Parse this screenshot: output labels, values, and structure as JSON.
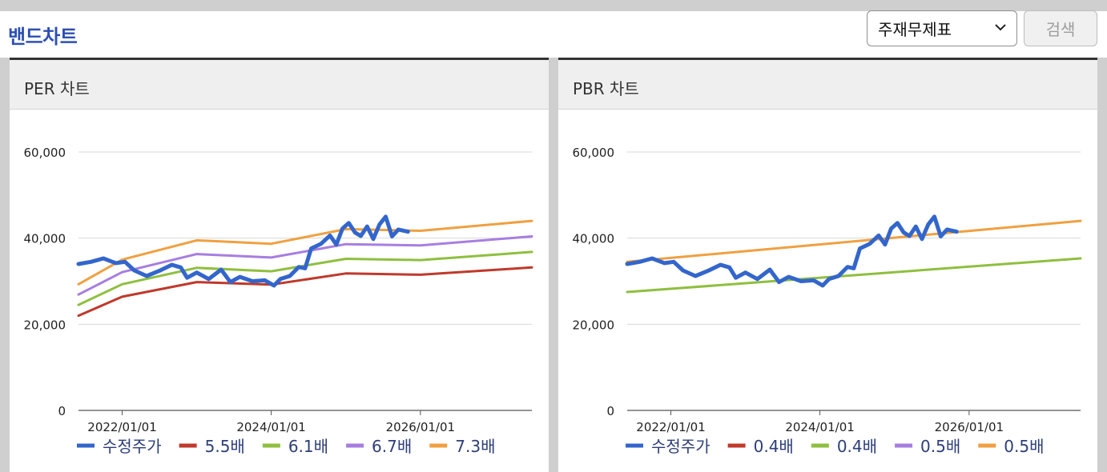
{
  "header": {
    "title": "밴드차트"
  },
  "controls": {
    "select_value": "주재무제표",
    "search_label": "검색",
    "icons": {
      "select_arrow": "chevron-down-icon"
    }
  },
  "colors": {
    "title": "#2d4fb3",
    "price": "#3366cc",
    "band1": "#c0392b",
    "band2": "#8fbf3f",
    "band3": "#a77ee0",
    "band4": "#f0a040"
  },
  "chart_data": [
    {
      "type": "line",
      "title": "PER 차트",
      "xlabel": "",
      "ylabel": "",
      "xlim": [
        "2021/06/01",
        "2027/07/01"
      ],
      "ylim": [
        0,
        60000
      ],
      "x_ticks": [
        "2022/01/01",
        "2024/01/01",
        "2026/01/01"
      ],
      "y_ticks": [
        "0",
        "20,000",
        "40,000",
        "60,000"
      ],
      "grid": true,
      "legend": "bottom",
      "series": [
        {
          "name": "수정주가",
          "color": "#3366cc",
          "width": 5,
          "points": [
            [
              "2021/06/01",
              34000
            ],
            [
              "2021/08/01",
              34500
            ],
            [
              "2021/10/01",
              35300
            ],
            [
              "2021/12/01",
              34200
            ],
            [
              "2022/01/15",
              34500
            ],
            [
              "2022/03/01",
              32500
            ],
            [
              "2022/05/01",
              31200
            ],
            [
              "2022/07/01",
              32400
            ],
            [
              "2022/09/01",
              33800
            ],
            [
              "2022/10/15",
              33200
            ],
            [
              "2022/11/15",
              30800
            ],
            [
              "2023/01/01",
              32000
            ],
            [
              "2023/03/01",
              30500
            ],
            [
              "2023/05/01",
              32700
            ],
            [
              "2023/06/15",
              29800
            ],
            [
              "2023/08/01",
              31000
            ],
            [
              "2023/10/01",
              30000
            ],
            [
              "2023/12/01",
              30200
            ],
            [
              "2024/01/15",
              29000
            ],
            [
              "2024/02/15",
              30500
            ],
            [
              "2024/04/01",
              31200
            ],
            [
              "2024/05/15",
              33300
            ],
            [
              "2024/06/15",
              33000
            ],
            [
              "2024/07/15",
              37600
            ],
            [
              "2024/09/01",
              38700
            ],
            [
              "2024/10/15",
              40600
            ],
            [
              "2024/11/15",
              38500
            ],
            [
              "2024/12/15",
              42200
            ],
            [
              "2025/01/15",
              43500
            ],
            [
              "2025/02/15",
              41300
            ],
            [
              "2025/03/15",
              40500
            ],
            [
              "2025/04/15",
              42700
            ],
            [
              "2025/05/15",
              39800
            ],
            [
              "2025/06/15",
              43200
            ],
            [
              "2025/07/15",
              45000
            ],
            [
              "2025/08/15",
              40400
            ],
            [
              "2025/09/15",
              42000
            ],
            [
              "2025/11/01",
              41500
            ]
          ]
        },
        {
          "name": "5.5배",
          "color": "#c0392b",
          "width": 3,
          "points": [
            [
              "2021/06/01",
              22000
            ],
            [
              "2022/01/01",
              26400
            ],
            [
              "2023/01/01",
              29800
            ],
            [
              "2024/01/01",
              29200
            ],
            [
              "2025/01/01",
              31800
            ],
            [
              "2026/01/01",
              31500
            ],
            [
              "2027/07/01",
              33200
            ]
          ]
        },
        {
          "name": "6.1배",
          "color": "#8fbf3f",
          "width": 3,
          "points": [
            [
              "2021/06/01",
              24500
            ],
            [
              "2022/01/01",
              29300
            ],
            [
              "2023/01/01",
              33100
            ],
            [
              "2024/01/01",
              32300
            ],
            [
              "2025/01/01",
              35200
            ],
            [
              "2026/01/01",
              34900
            ],
            [
              "2027/07/01",
              36800
            ]
          ]
        },
        {
          "name": "6.7배",
          "color": "#a77ee0",
          "width": 3,
          "points": [
            [
              "2021/06/01",
              26900
            ],
            [
              "2022/01/01",
              32100
            ],
            [
              "2023/01/01",
              36300
            ],
            [
              "2024/01/01",
              35500
            ],
            [
              "2025/01/01",
              38600
            ],
            [
              "2026/01/01",
              38300
            ],
            [
              "2027/07/01",
              40400
            ]
          ]
        },
        {
          "name": "7.3배",
          "color": "#f0a040",
          "width": 3,
          "points": [
            [
              "2021/06/01",
              29300
            ],
            [
              "2022/01/01",
              35000
            ],
            [
              "2023/01/01",
              39500
            ],
            [
              "2024/01/01",
              38700
            ],
            [
              "2025/01/01",
              42100
            ],
            [
              "2026/01/01",
              41700
            ],
            [
              "2027/07/01",
              44000
            ]
          ]
        }
      ]
    },
    {
      "type": "line",
      "title": "PBR 차트",
      "xlabel": "",
      "ylabel": "",
      "xlim": [
        "2021/06/01",
        "2027/07/01"
      ],
      "ylim": [
        0,
        60000
      ],
      "x_ticks": [
        "2022/01/01",
        "2024/01/01",
        "2026/01/01"
      ],
      "y_ticks": [
        "0",
        "20,000",
        "40,000",
        "60,000"
      ],
      "grid": true,
      "legend": "bottom",
      "series": [
        {
          "name": "수정주가",
          "color": "#3366cc",
          "width": 5,
          "points": [
            [
              "2021/06/01",
              34000
            ],
            [
              "2021/08/01",
              34500
            ],
            [
              "2021/10/01",
              35300
            ],
            [
              "2021/12/01",
              34200
            ],
            [
              "2022/01/15",
              34500
            ],
            [
              "2022/03/01",
              32500
            ],
            [
              "2022/05/01",
              31200
            ],
            [
              "2022/07/01",
              32400
            ],
            [
              "2022/09/01",
              33800
            ],
            [
              "2022/10/15",
              33200
            ],
            [
              "2022/11/15",
              30800
            ],
            [
              "2023/01/01",
              32000
            ],
            [
              "2023/03/01",
              30500
            ],
            [
              "2023/05/01",
              32700
            ],
            [
              "2023/06/15",
              29800
            ],
            [
              "2023/08/01",
              31000
            ],
            [
              "2023/10/01",
              30000
            ],
            [
              "2023/12/01",
              30200
            ],
            [
              "2024/01/15",
              29000
            ],
            [
              "2024/02/15",
              30500
            ],
            [
              "2024/04/01",
              31200
            ],
            [
              "2024/05/15",
              33300
            ],
            [
              "2024/06/15",
              33000
            ],
            [
              "2024/07/15",
              37600
            ],
            [
              "2024/09/01",
              38700
            ],
            [
              "2024/10/15",
              40600
            ],
            [
              "2024/11/15",
              38500
            ],
            [
              "2024/12/15",
              42200
            ],
            [
              "2025/01/15",
              43500
            ],
            [
              "2025/02/15",
              41300
            ],
            [
              "2025/03/15",
              40500
            ],
            [
              "2025/04/15",
              42700
            ],
            [
              "2025/05/15",
              39800
            ],
            [
              "2025/06/15",
              43200
            ],
            [
              "2025/07/15",
              45000
            ],
            [
              "2025/08/15",
              40400
            ],
            [
              "2025/09/15",
              42000
            ],
            [
              "2025/11/01",
              41500
            ]
          ]
        },
        {
          "name": "0.4배",
          "color": "#c0392b",
          "width": 3,
          "points": []
        },
        {
          "name": "0.4배",
          "color": "#8fbf3f",
          "width": 3,
          "points": [
            [
              "2021/06/01",
              27500
            ],
            [
              "2027/07/01",
              35300
            ]
          ]
        },
        {
          "name": "0.5배",
          "color": "#a77ee0",
          "width": 3,
          "points": []
        },
        {
          "name": "0.5배",
          "color": "#f0a040",
          "width": 3,
          "points": [
            [
              "2021/06/01",
              34500
            ],
            [
              "2027/07/01",
              44000
            ]
          ]
        }
      ]
    }
  ]
}
